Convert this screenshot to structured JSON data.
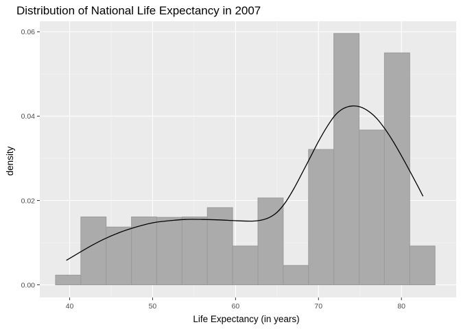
{
  "chart_data": {
    "type": "bar",
    "title": "Distribution of National Life Expectancy in 2007",
    "xlabel": "Life Expectancy (in years)",
    "ylabel": "density",
    "xlim": [
      36.4,
      86.6
    ],
    "ylim": [
      -0.003,
      0.0625
    ],
    "x_ticks": [
      {
        "value": 40,
        "label": "40"
      },
      {
        "value": 50,
        "label": "50"
      },
      {
        "value": 60,
        "label": "60"
      },
      {
        "value": 70,
        "label": "70"
      },
      {
        "value": 80,
        "label": "80"
      }
    ],
    "y_ticks": [
      {
        "value": 0.0,
        "label": "0.00"
      },
      {
        "value": 0.02,
        "label": "0.02"
      },
      {
        "value": 0.04,
        "label": "0.04"
      },
      {
        "value": 0.06,
        "label": "0.06"
      }
    ],
    "grid": true,
    "histogram": {
      "bin_edges": [
        38.3,
        41.35,
        44.4,
        47.45,
        50.5,
        53.55,
        56.6,
        59.65,
        62.7,
        65.75,
        68.8,
        71.85,
        74.9,
        77.95,
        81.0,
        84.05
      ],
      "densities": [
        0.0023,
        0.0161,
        0.0137,
        0.0161,
        0.016,
        0.0161,
        0.0183,
        0.0092,
        0.0206,
        0.0046,
        0.0321,
        0.0596,
        0.0367,
        0.055,
        0.0092
      ],
      "fill": "#ababab",
      "stroke": "#9a9a9a"
    },
    "density_curve": {
      "x": [
        39.6,
        42,
        44,
        46,
        48,
        50,
        52,
        54,
        56,
        58,
        60,
        62,
        63,
        64,
        65,
        66,
        67,
        68,
        69,
        70,
        71,
        72,
        73,
        74,
        75,
        76,
        77,
        78,
        79,
        80,
        81,
        82,
        82.6
      ],
      "y": [
        0.0058,
        0.0086,
        0.0107,
        0.0124,
        0.0137,
        0.0147,
        0.0152,
        0.0155,
        0.0155,
        0.0154,
        0.0152,
        0.0151,
        0.0153,
        0.0159,
        0.0172,
        0.0195,
        0.0227,
        0.0264,
        0.0302,
        0.034,
        0.0374,
        0.0402,
        0.0418,
        0.0424,
        0.0422,
        0.0412,
        0.0395,
        0.037,
        0.034,
        0.0306,
        0.027,
        0.0233,
        0.021
      ],
      "color": "#000000"
    },
    "colors": {
      "panel_background": "#ebebeb",
      "grid_major": "#ffffff",
      "grid_minor": "#f5f5f5"
    }
  }
}
